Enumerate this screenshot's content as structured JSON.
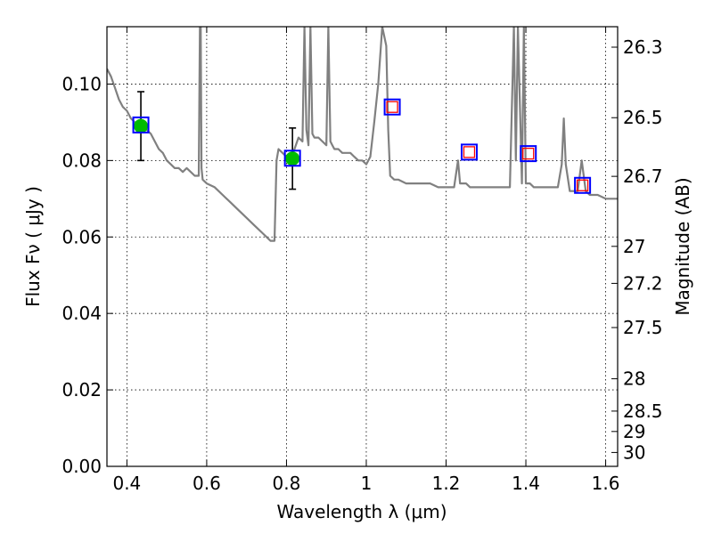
{
  "chart_data": {
    "type": "line",
    "xlabel": "Wavelength  λ (μm)",
    "ylabel": "Flux  Fν  ( μJy )",
    "y2label": "Magnitude (AB)",
    "xlim": [
      0.35,
      1.63
    ],
    "ylim": [
      0.0,
      0.115
    ],
    "grid": true,
    "x_ticks": [
      0.4,
      0.6,
      0.8,
      1.0,
      1.2,
      1.4,
      1.6
    ],
    "x_tick_labels": [
      "0.4",
      "0.6",
      "0.8",
      "1",
      "1.2",
      "1.4",
      "1.6"
    ],
    "y_ticks": [
      0.0,
      0.02,
      0.04,
      0.06,
      0.08,
      0.1
    ],
    "y_tick_labels": [
      "0.00",
      "0.02",
      "0.04",
      "0.06",
      "0.08",
      "0.10"
    ],
    "mag_ticks": [
      26.3,
      26.5,
      26.7,
      27,
      27.2,
      27.5,
      28,
      28.5,
      29,
      30
    ],
    "mag_tick_labels": [
      "26.3",
      "26.5",
      "26.7",
      "27",
      "27.2",
      "27.5",
      "28",
      "28.5",
      "29",
      "30"
    ],
    "series": [
      {
        "kind": "spectrum",
        "color": "#808080",
        "x": [
          0.35,
          0.36,
          0.37,
          0.38,
          0.39,
          0.4,
          0.41,
          0.42,
          0.43,
          0.44,
          0.45,
          0.46,
          0.47,
          0.48,
          0.49,
          0.5,
          0.51,
          0.52,
          0.53,
          0.54,
          0.55,
          0.56,
          0.57,
          0.58,
          0.583,
          0.585,
          0.587,
          0.59,
          0.6,
          0.62,
          0.64,
          0.66,
          0.68,
          0.7,
          0.72,
          0.74,
          0.75,
          0.76,
          0.77,
          0.775,
          0.78,
          0.79,
          0.8,
          0.81,
          0.82,
          0.83,
          0.84,
          0.845,
          0.85,
          0.855,
          0.86,
          0.865,
          0.87,
          0.88,
          0.89,
          0.9,
          0.905,
          0.91,
          0.915,
          0.92,
          0.93,
          0.94,
          0.95,
          0.96,
          0.97,
          0.98,
          0.99,
          1.0,
          1.01,
          1.02,
          1.03,
          1.04,
          1.05,
          1.055,
          1.06,
          1.07,
          1.08,
          1.1,
          1.12,
          1.14,
          1.16,
          1.18,
          1.2,
          1.22,
          1.23,
          1.235,
          1.24,
          1.25,
          1.26,
          1.28,
          1.3,
          1.32,
          1.34,
          1.36,
          1.37,
          1.375,
          1.38,
          1.39,
          1.395,
          1.4,
          1.41,
          1.42,
          1.44,
          1.46,
          1.48,
          1.49,
          1.495,
          1.5,
          1.51,
          1.52,
          1.53,
          1.54,
          1.55,
          1.56,
          1.58,
          1.6,
          1.63
        ],
        "y": [
          0.104,
          0.102,
          0.099,
          0.096,
          0.094,
          0.093,
          0.091,
          0.09,
          0.089,
          0.089,
          0.088,
          0.087,
          0.085,
          0.083,
          0.082,
          0.08,
          0.079,
          0.078,
          0.078,
          0.077,
          0.078,
          0.077,
          0.076,
          0.076,
          0.115,
          0.115,
          0.078,
          0.075,
          0.074,
          0.073,
          0.071,
          0.069,
          0.067,
          0.065,
          0.063,
          0.061,
          0.06,
          0.059,
          0.059,
          0.08,
          0.083,
          0.082,
          0.081,
          0.08,
          0.083,
          0.086,
          0.085,
          0.115,
          0.088,
          0.084,
          0.115,
          0.087,
          0.086,
          0.086,
          0.085,
          0.084,
          0.115,
          0.085,
          0.084,
          0.083,
          0.083,
          0.082,
          0.082,
          0.082,
          0.081,
          0.08,
          0.08,
          0.079,
          0.081,
          0.09,
          0.1,
          0.115,
          0.11,
          0.088,
          0.076,
          0.075,
          0.075,
          0.074,
          0.074,
          0.074,
          0.074,
          0.073,
          0.073,
          0.073,
          0.08,
          0.074,
          0.074,
          0.074,
          0.073,
          0.073,
          0.073,
          0.073,
          0.073,
          0.073,
          0.115,
          0.08,
          0.115,
          0.074,
          0.115,
          0.074,
          0.074,
          0.073,
          0.073,
          0.073,
          0.073,
          0.079,
          0.091,
          0.079,
          0.072,
          0.072,
          0.072,
          0.08,
          0.072,
          0.071,
          0.071,
          0.07,
          0.07
        ]
      },
      {
        "kind": "observed",
        "marker": "filled-circle",
        "color": "#00bb00",
        "x": [
          0.435,
          0.815
        ],
        "y": [
          0.089,
          0.0805
        ],
        "yerr": [
          0.009,
          0.008
        ]
      },
      {
        "kind": "model-photometry",
        "marker": "open-square",
        "color": "#0000ff",
        "x": [
          0.435,
          0.815,
          1.065,
          1.258,
          1.406,
          1.542
        ],
        "y": [
          0.0893,
          0.0806,
          0.094,
          0.0822,
          0.0818,
          0.0735
        ]
      },
      {
        "kind": "synthetic-photometry",
        "marker": "open-square",
        "color": "#ff0000",
        "x": [
          1.065,
          1.258,
          1.406,
          1.542
        ],
        "y": [
          0.094,
          0.0822,
          0.0818,
          0.0735
        ]
      }
    ]
  }
}
